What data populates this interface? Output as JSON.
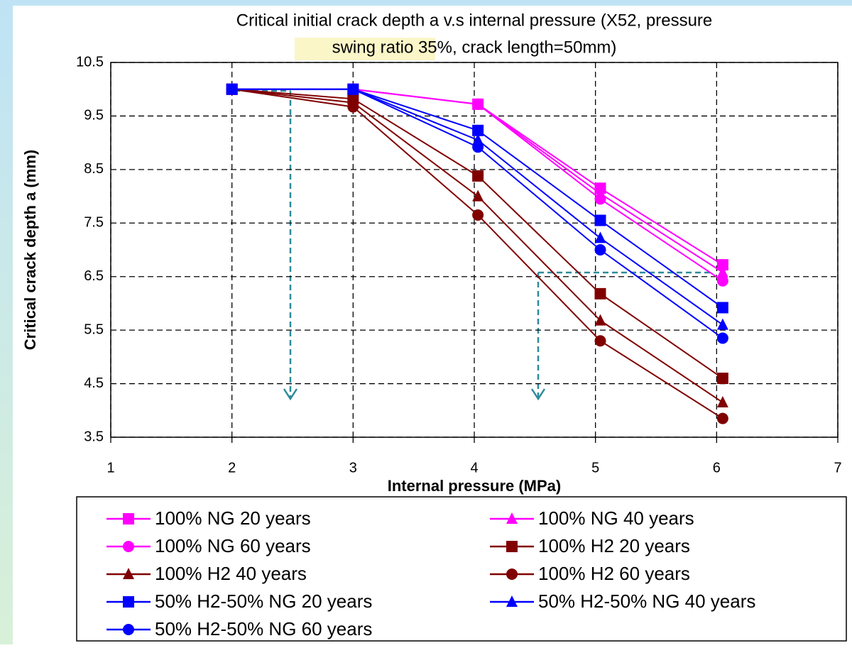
{
  "chart_data": {
    "type": "line",
    "title_lines": [
      "Critical initial crack depth a v.s internal pressure (X52, pressure",
      "swing ratio 35%, crack length=50mm)"
    ],
    "x_label": "Internal pressure (MPa)",
    "y_label": "Critical crack depth a (mm)",
    "x": [
      2,
      3,
      4.03,
      5.04,
      6.05
    ],
    "xlim": [
      1,
      7
    ],
    "xticks": [
      1,
      2,
      3,
      4,
      5,
      6,
      7
    ],
    "ylim": [
      3.5,
      10.5
    ],
    "yticks": [
      3.5,
      4.5,
      5.5,
      6.5,
      7.5,
      8.5,
      9.5,
      10.5
    ],
    "grid": true,
    "series": [
      {
        "name": "100% NG 20 years",
        "color": "#ff00ff",
        "marker": "square",
        "values": [
          10,
          10,
          9.72,
          8.15,
          6.72
        ]
      },
      {
        "name": "100% NG 40 years",
        "color": "#ff00ff",
        "marker": "triangle",
        "values": [
          10,
          10,
          9.72,
          8.05,
          6.58
        ]
      },
      {
        "name": "100% NG 60 years",
        "color": "#ff00ff",
        "marker": "circle",
        "values": [
          10,
          10,
          9.72,
          7.95,
          6.42
        ]
      },
      {
        "name": "100% H2 20 years",
        "color": "#800000",
        "marker": "square",
        "values": [
          10,
          9.82,
          8.38,
          6.18,
          4.6
        ]
      },
      {
        "name": "100% H2 40 years",
        "color": "#800000",
        "marker": "triangle",
        "values": [
          10,
          9.75,
          8.0,
          5.68,
          4.15
        ]
      },
      {
        "name": "100% H2 60 years",
        "color": "#800000",
        "marker": "circle",
        "values": [
          10,
          9.67,
          7.65,
          5.3,
          3.85
        ]
      },
      {
        "name": "50% H2-50% NG 20 years",
        "color": "#0000ff",
        "marker": "square",
        "values": [
          10,
          10,
          9.23,
          7.55,
          5.92
        ]
      },
      {
        "name": "50% H2-50% NG 40 years",
        "color": "#0000ff",
        "marker": "triangle",
        "values": [
          10,
          10,
          9.05,
          7.22,
          5.6
        ]
      },
      {
        "name": "50% H2-50% NG 60 years",
        "color": "#0000ff",
        "marker": "circle",
        "values": [
          10,
          10,
          8.92,
          7.0,
          5.35
        ]
      }
    ]
  }
}
